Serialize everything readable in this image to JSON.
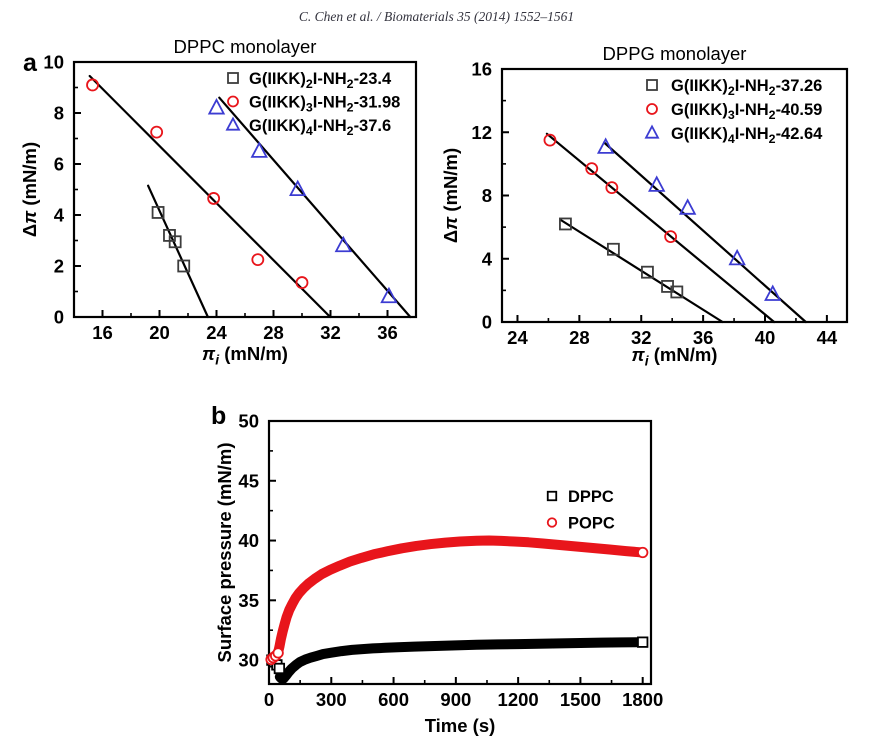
{
  "header": {
    "citation": "C. Chen et al. / Biomaterials 35 (2014) 1552–1561"
  },
  "panels": {
    "a_label": "a",
    "b_label": "b"
  },
  "colors": {
    "red": "#e8151b",
    "blue": "#3c3cd2",
    "dark_gray": "#3d3d3d",
    "black": "#000000",
    "white": "#ffffff"
  },
  "chart_data": [
    {
      "id": "dppc",
      "type": "scatter",
      "title": "DPPC monolayer",
      "xlabel_parts": [
        {
          "t": "π",
          "i": 1
        },
        {
          "t": "i",
          "i": 1,
          "s": 1
        },
        {
          "t": " (mN/m)"
        }
      ],
      "ylabel_parts": [
        {
          "t": "Δ"
        },
        {
          "t": "π",
          "i": 1
        },
        {
          "t": " (mN/m)"
        }
      ],
      "xlim": [
        14,
        38
      ],
      "xticks": [
        16,
        20,
        24,
        28,
        32,
        36
      ],
      "xminor_step": 2,
      "ylim": [
        0,
        10
      ],
      "yticks": [
        0,
        2,
        4,
        6,
        8,
        10
      ],
      "yminor_step": 1,
      "grid": false,
      "legend_position": "top-right",
      "series": [
        {
          "label_parts": [
            {
              "t": "G(IIKK)"
            },
            {
              "t": "2",
              "s": 1
            },
            {
              "t": "I-NH"
            },
            {
              "t": "2",
              "s": 1
            },
            {
              "t": "-23.4"
            }
          ],
          "marker": "square",
          "color": "#3d3d3d",
          "marker_fill": "none",
          "msize": 11,
          "points": [
            [
              19.9,
              4.1
            ],
            [
              20.7,
              3.2
            ],
            [
              21.1,
              2.95
            ],
            [
              21.7,
              2.0
            ]
          ],
          "line": [
            [
              19.2,
              5.15
            ],
            [
              23.4,
              0
            ]
          ],
          "line_color": "#000000",
          "line_width": 2.2,
          "x_intercept": 23.4
        },
        {
          "label_parts": [
            {
              "t": "G(IIKK)"
            },
            {
              "t": "3",
              "s": 1
            },
            {
              "t": "I-NH"
            },
            {
              "t": "2",
              "s": 1
            },
            {
              "t": "-31.98"
            }
          ],
          "marker": "circle",
          "color": "#e8151b",
          "marker_fill": "none",
          "msize": 11,
          "points": [
            [
              15.3,
              9.1
            ],
            [
              19.8,
              7.25
            ],
            [
              23.8,
              4.65
            ],
            [
              26.9,
              2.25
            ],
            [
              30.0,
              1.35
            ]
          ],
          "line": [
            [
              15.1,
              9.45
            ],
            [
              31.98,
              0
            ]
          ],
          "line_color": "#000000",
          "line_width": 2.2,
          "x_intercept": 31.98
        },
        {
          "label_parts": [
            {
              "t": "G(IIKK)"
            },
            {
              "t": "4",
              "s": 1
            },
            {
              "t": "I-NH"
            },
            {
              "t": "2",
              "s": 1
            },
            {
              "t": "-37.6"
            }
          ],
          "marker": "triangle",
          "color": "#3c3cd2",
          "marker_fill": "none",
          "msize": 12,
          "points": [
            [
              24.0,
              8.2
            ],
            [
              27.0,
              6.5
            ],
            [
              29.7,
              5.0
            ],
            [
              32.9,
              2.8
            ],
            [
              36.1,
              0.8
            ]
          ],
          "line": [
            [
              24.2,
              8.6
            ],
            [
              37.6,
              0
            ]
          ],
          "line_color": "#000000",
          "line_width": 2.2,
          "x_intercept": 37.6
        }
      ]
    },
    {
      "id": "dppg",
      "type": "scatter",
      "title": "DPPG monolayer",
      "xlabel_parts": [
        {
          "t": "π",
          "i": 1
        },
        {
          "t": "i",
          "i": 1,
          "s": 1
        },
        {
          "t": " (mN/m)"
        }
      ],
      "ylabel_parts": [
        {
          "t": "Δ"
        },
        {
          "t": "π",
          "i": 1
        },
        {
          "t": " (mN/m)"
        }
      ],
      "xlim": [
        23,
        45.3
      ],
      "xticks": [
        24,
        28,
        32,
        36,
        40,
        44
      ],
      "xminor_step": 2,
      "ylim": [
        0,
        16
      ],
      "yticks": [
        0,
        4,
        8,
        12,
        16
      ],
      "yminor_step": 2,
      "grid": false,
      "legend_position": "top-right",
      "series": [
        {
          "label_parts": [
            {
              "t": "G(IIKK)"
            },
            {
              "t": "2",
              "s": 1
            },
            {
              "t": "I-NH"
            },
            {
              "t": "2",
              "s": 1
            },
            {
              "t": "-37.26"
            }
          ],
          "marker": "square",
          "color": "#3d3d3d",
          "marker_fill": "none",
          "msize": 11,
          "points": [
            [
              27.1,
              6.2
            ],
            [
              30.2,
              4.6
            ],
            [
              32.4,
              3.15
            ],
            [
              33.7,
              2.25
            ],
            [
              34.3,
              1.9
            ]
          ],
          "line": [
            [
              26.8,
              6.45
            ],
            [
              37.26,
              0
            ]
          ],
          "line_color": "#000000",
          "line_width": 2.2,
          "x_intercept": 37.26
        },
        {
          "label_parts": [
            {
              "t": "G(IIKK)"
            },
            {
              "t": "3",
              "s": 1
            },
            {
              "t": "I-NH"
            },
            {
              "t": "2",
              "s": 1
            },
            {
              "t": "-40.59"
            }
          ],
          "marker": "circle",
          "color": "#e8151b",
          "marker_fill": "none",
          "msize": 11,
          "points": [
            [
              26.1,
              11.5
            ],
            [
              28.8,
              9.7
            ],
            [
              30.1,
              8.5
            ],
            [
              33.9,
              5.4
            ]
          ],
          "line": [
            [
              25.9,
              11.9
            ],
            [
              40.59,
              0
            ]
          ],
          "line_color": "#000000",
          "line_width": 2.2,
          "x_intercept": 40.59
        },
        {
          "label_parts": [
            {
              "t": "G(IIKK)"
            },
            {
              "t": "4",
              "s": 1
            },
            {
              "t": "I-NH"
            },
            {
              "t": "2",
              "s": 1
            },
            {
              "t": "-42.64"
            }
          ],
          "marker": "triangle",
          "color": "#3c3cd2",
          "marker_fill": "none",
          "msize": 12,
          "points": [
            [
              29.7,
              11.05
            ],
            [
              33.0,
              8.65
            ],
            [
              35.0,
              7.2
            ],
            [
              38.2,
              4.0
            ],
            [
              40.5,
              1.75
            ]
          ],
          "line": [
            [
              29.6,
              11.35
            ],
            [
              42.64,
              0
            ]
          ],
          "line_color": "#000000",
          "line_width": 2.2,
          "x_intercept": 42.64
        }
      ]
    },
    {
      "id": "kinetics",
      "type": "line",
      "title": "",
      "xlabel_parts": [
        {
          "t": "Time (s)"
        }
      ],
      "ylabel_parts": [
        {
          "t": "Surface pressure (mN/m)"
        }
      ],
      "xlim": [
        0,
        1840
      ],
      "xticks": [
        0,
        300,
        600,
        900,
        1200,
        1500,
        1800
      ],
      "xminor_step": 150,
      "ylim": [
        28,
        50
      ],
      "yticks": [
        30,
        35,
        40,
        45,
        50
      ],
      "yminor_step": 2.5,
      "grid": false,
      "legend_position": "right-middle",
      "series": [
        {
          "label_parts": [
            {
              "t": "DPPC"
            }
          ],
          "marker": "square",
          "color": "#000000",
          "marker_fill": "#ffffff",
          "msize": 9.5,
          "points": [
            [
              14,
              30.0
            ],
            [
              26,
              29.85
            ],
            [
              38,
              29.6
            ],
            [
              50,
              29.3
            ],
            [
              1800,
              31.5
            ]
          ],
          "line": [
            [
              52,
              28.6
            ],
            [
              60,
              28.45
            ],
            [
              70,
              28.45
            ],
            [
              82,
              28.7
            ],
            [
              95,
              29.0
            ],
            [
              110,
              29.3
            ],
            [
              130,
              29.6
            ],
            [
              150,
              29.85
            ],
            [
              175,
              30.05
            ],
            [
              200,
              30.2
            ],
            [
              230,
              30.35
            ],
            [
              260,
              30.5
            ],
            [
              300,
              30.62
            ],
            [
              350,
              30.75
            ],
            [
              400,
              30.85
            ],
            [
              450,
              30.92
            ],
            [
              500,
              30.98
            ],
            [
              560,
              31.03
            ],
            [
              620,
              31.08
            ],
            [
              700,
              31.13
            ],
            [
              800,
              31.18
            ],
            [
              900,
              31.23
            ],
            [
              1000,
              31.28
            ],
            [
              1100,
              31.31
            ],
            [
              1200,
              31.34
            ],
            [
              1300,
              31.37
            ],
            [
              1400,
              31.4
            ],
            [
              1500,
              31.43
            ],
            [
              1600,
              31.46
            ],
            [
              1700,
              31.48
            ],
            [
              1800,
              31.5
            ]
          ],
          "line_color": "#000000",
          "line_width": 10,
          "plateau_value": 31.5
        },
        {
          "label_parts": [
            {
              "t": "POPC"
            }
          ],
          "marker": "circle",
          "color": "#e8151b",
          "marker_fill": "#ffffff",
          "msize": 9.5,
          "points": [
            [
              10,
              30.05
            ],
            [
              20,
              30.2
            ],
            [
              32,
              30.35
            ],
            [
              44,
              30.6
            ],
            [
              1800,
              39.0
            ]
          ],
          "line": [
            [
              42,
              30.5
            ],
            [
              50,
              31.1
            ],
            [
              58,
              31.8
            ],
            [
              66,
              32.4
            ],
            [
              75,
              33.0
            ],
            [
              85,
              33.6
            ],
            [
              98,
              34.2
            ],
            [
              112,
              34.7
            ],
            [
              128,
              35.2
            ],
            [
              145,
              35.6
            ],
            [
              165,
              36.0
            ],
            [
              190,
              36.4
            ],
            [
              220,
              36.8
            ],
            [
              255,
              37.2
            ],
            [
              295,
              37.55
            ],
            [
              340,
              37.9
            ],
            [
              390,
              38.25
            ],
            [
              445,
              38.55
            ],
            [
              505,
              38.85
            ],
            [
              570,
              39.1
            ],
            [
              640,
              39.35
            ],
            [
              710,
              39.55
            ],
            [
              780,
              39.7
            ],
            [
              850,
              39.83
            ],
            [
              920,
              39.92
            ],
            [
              1000,
              39.98
            ],
            [
              1060,
              40.0
            ],
            [
              1120,
              39.97
            ],
            [
              1180,
              39.92
            ],
            [
              1250,
              39.85
            ],
            [
              1320,
              39.75
            ],
            [
              1400,
              39.63
            ],
            [
              1480,
              39.5
            ],
            [
              1560,
              39.38
            ],
            [
              1640,
              39.25
            ],
            [
              1720,
              39.12
            ],
            [
              1800,
              39.0
            ]
          ],
          "line_color": "#e8151b",
          "line_width": 10,
          "peak_value": 40.0,
          "final_value": 39.0
        }
      ]
    }
  ]
}
